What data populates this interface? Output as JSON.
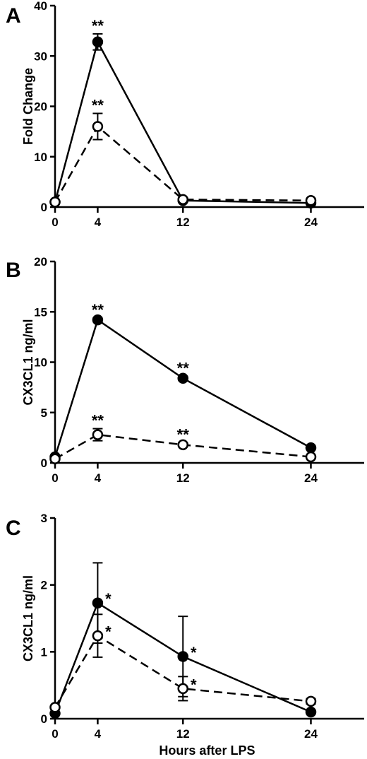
{
  "chart_data": [
    {
      "type": "line",
      "panel_label": "A",
      "ylabel": "Fold Change",
      "xlabel": "",
      "xticks": [
        0,
        4,
        12,
        24
      ],
      "yticks": [
        0,
        10,
        20,
        30,
        40
      ],
      "xlim": [
        0,
        29
      ],
      "ylim": [
        0,
        40
      ],
      "series": [
        {
          "style": "solid-filled",
          "x": [
            0,
            4,
            12,
            24
          ],
          "y": [
            1,
            32.8,
            1.3,
            0.8
          ],
          "err": [
            0,
            1.6,
            0.3,
            0.2
          ],
          "sig": [
            "",
            "**",
            "",
            ""
          ]
        },
        {
          "style": "dashed-open",
          "x": [
            0,
            4,
            12,
            24
          ],
          "y": [
            1,
            16,
            1.5,
            1.3
          ],
          "err": [
            0,
            2.6,
            0.3,
            0.3
          ],
          "sig": [
            "",
            "**",
            "",
            ""
          ]
        }
      ]
    },
    {
      "type": "line",
      "panel_label": "B",
      "ylabel": "CX3CL1 ng/ml",
      "xlabel": "",
      "xticks": [
        0,
        4,
        12,
        24
      ],
      "yticks": [
        0,
        5,
        10,
        15,
        20
      ],
      "xlim": [
        0,
        29
      ],
      "ylim": [
        0,
        20
      ],
      "series": [
        {
          "style": "solid-filled",
          "x": [
            0,
            4,
            12,
            24
          ],
          "y": [
            0.6,
            14.2,
            8.4,
            1.5
          ],
          "err": [
            0,
            0.2,
            0.2,
            0.1
          ],
          "sig": [
            "",
            "**",
            "**",
            ""
          ]
        },
        {
          "style": "dashed-open",
          "x": [
            0,
            4,
            12,
            24
          ],
          "y": [
            0.4,
            2.8,
            1.8,
            0.6
          ],
          "err": [
            0,
            0.6,
            0.2,
            0.1
          ],
          "sig": [
            "",
            "**",
            "**",
            ""
          ]
        }
      ]
    },
    {
      "type": "line",
      "panel_label": "C",
      "ylabel": "CX3CL1 ng/ml",
      "xlabel": "Hours  after  LPS",
      "xticks": [
        0,
        4,
        12,
        24
      ],
      "yticks": [
        0,
        1,
        2,
        3
      ],
      "xlim": [
        0,
        29
      ],
      "ylim": [
        0,
        3
      ],
      "series": [
        {
          "style": "solid-filled",
          "x": [
            0,
            4,
            12,
            24
          ],
          "y": [
            0.08,
            1.73,
            0.93,
            0.1
          ],
          "err": [
            0,
            0.6,
            0.6,
            0.03
          ],
          "sig": [
            "",
            "*",
            "*",
            ""
          ]
        },
        {
          "style": "dashed-open",
          "x": [
            0,
            4,
            12,
            24
          ],
          "y": [
            0.17,
            1.24,
            0.45,
            0.26
          ],
          "err": [
            0,
            0.32,
            0.18,
            0.04
          ],
          "sig": [
            "",
            "*",
            "*",
            ""
          ]
        }
      ]
    }
  ]
}
